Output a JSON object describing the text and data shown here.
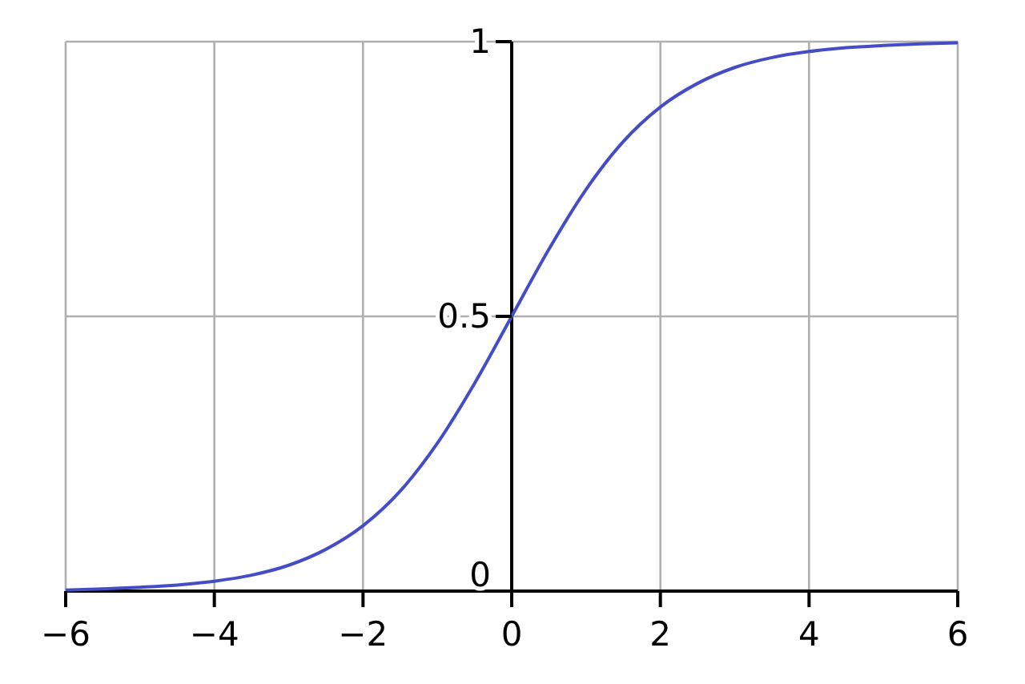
{
  "chart_data": {
    "type": "line",
    "x": [
      -6,
      -5.5,
      -5,
      -4.5,
      -4,
      -3.5,
      -3,
      -2.5,
      -2,
      -1.5,
      -1,
      -0.5,
      0,
      0.5,
      1,
      1.5,
      2,
      2.5,
      3,
      3.5,
      4,
      4.5,
      5,
      5.5,
      6
    ],
    "series": [
      {
        "color": "#444cc6",
        "values": [
          0.002,
          0.004,
          0.007,
          0.011,
          0.018,
          0.029,
          0.047,
          0.076,
          0.119,
          0.182,
          0.269,
          0.378,
          0.5,
          0.622,
          0.731,
          0.818,
          0.881,
          0.924,
          0.953,
          0.971,
          0.982,
          0.989,
          0.993,
          0.996,
          0.998
        ]
      }
    ],
    "xlim": [
      -6,
      6
    ],
    "ylim": [
      0,
      1
    ],
    "xticks": [
      {
        "value": -6,
        "label": "−6"
      },
      {
        "value": -4,
        "label": "−4"
      },
      {
        "value": -2,
        "label": "−2"
      },
      0,
      2,
      4,
      6
    ],
    "yticks": [
      0,
      0.5,
      1
    ],
    "grid": true,
    "line_style": "solid"
  }
}
